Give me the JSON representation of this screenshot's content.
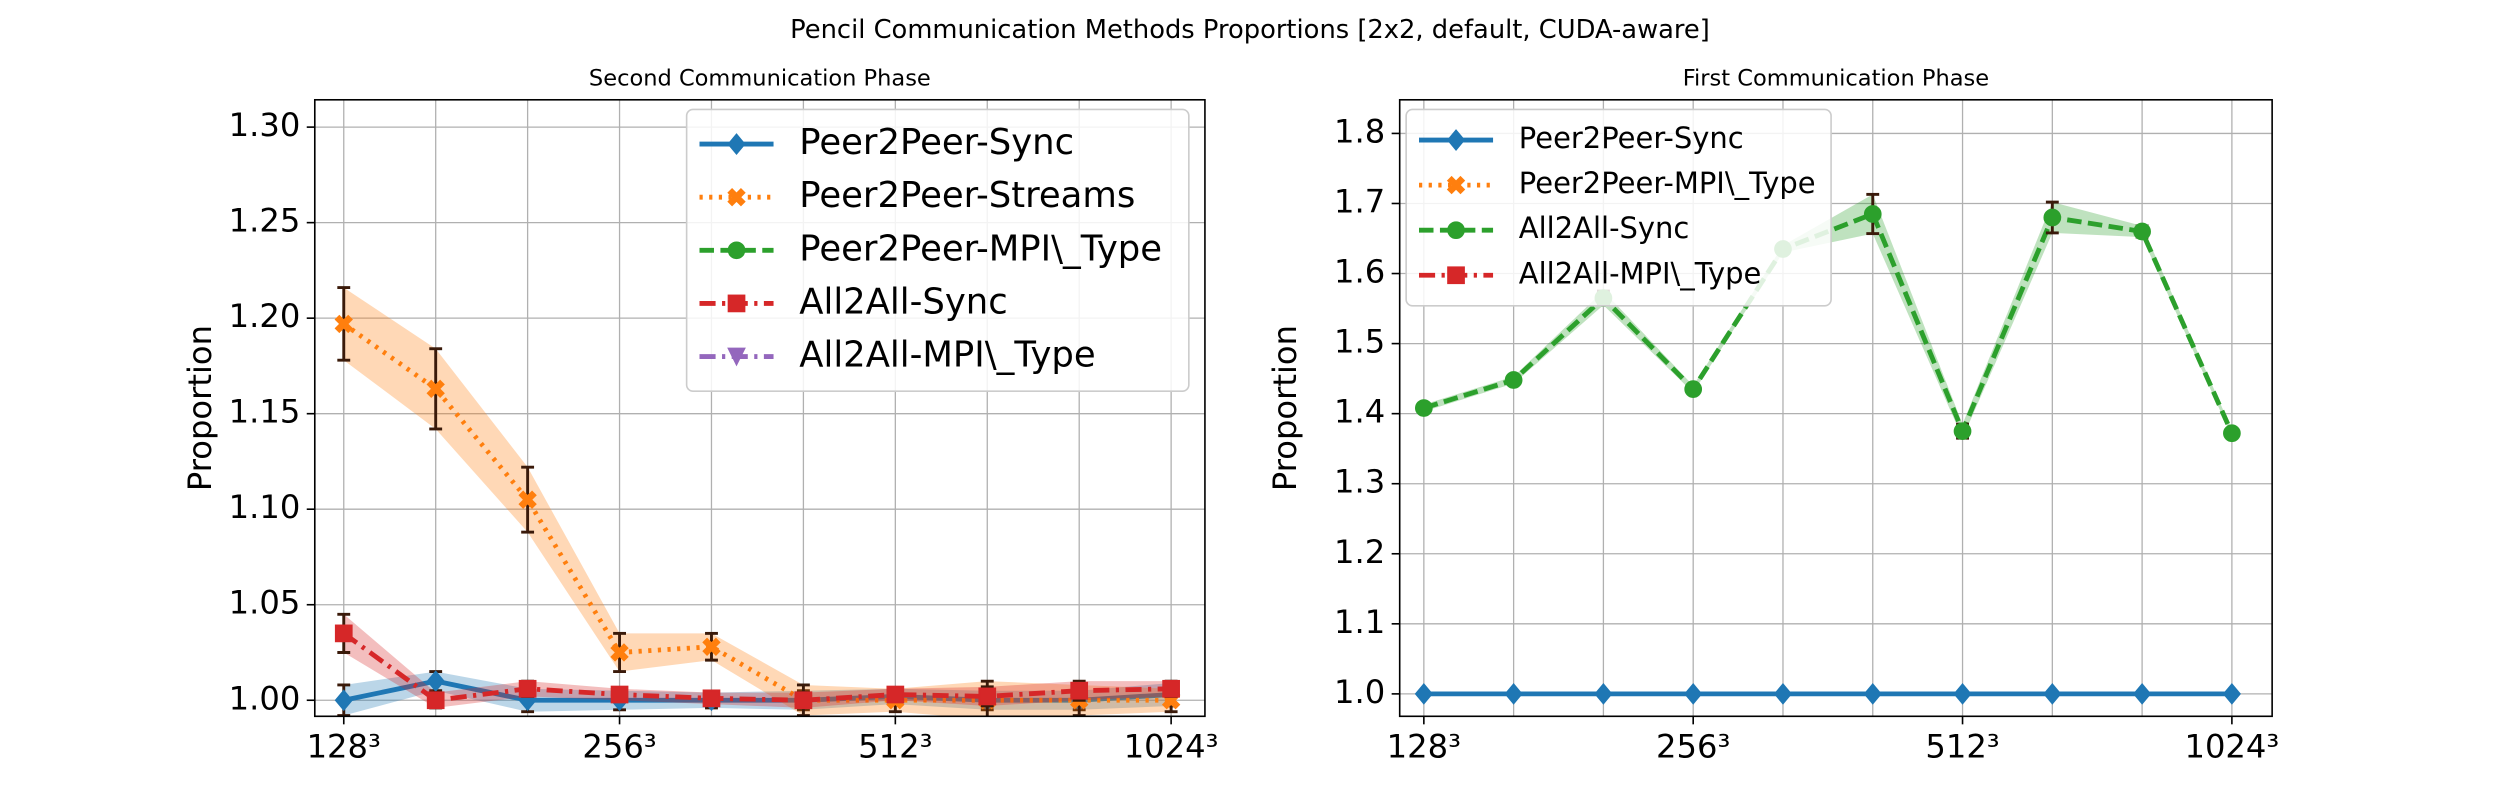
{
  "title": "Pencil Communication Methods Proportions [2x2, default, CUDA-aware]",
  "chart_data": [
    {
      "type": "line",
      "title": "Second Communication Phase",
      "y_label": "Proportion",
      "categories": [
        "128³",
        null,
        null,
        "256³",
        null,
        null,
        "512³",
        null,
        null,
        "1024³"
      ],
      "ylim": [
        0.9916,
        1.3143
      ],
      "yticks": [
        {
          "value": 1.0,
          "label": "1.00"
        },
        {
          "value": 1.05,
          "label": "1.05"
        },
        {
          "value": 1.1,
          "label": "1.10"
        },
        {
          "value": 1.15,
          "label": "1.15"
        },
        {
          "value": 1.2,
          "label": "1.20"
        },
        {
          "value": 1.25,
          "label": "1.25"
        },
        {
          "value": 1.3,
          "label": "1.30"
        }
      ],
      "grid": true,
      "legend": "upper right",
      "series": [
        {
          "name": "Peer2Peer-Sync",
          "color": "#1f77b4",
          "marker": "diamond",
          "linestyle": "solid",
          "values": [
            1.0,
            1.01,
            1.0,
            1.0,
            1.0,
            1.0,
            1.002,
            1.0,
            1.0,
            1.003
          ],
          "errors": [
            0.008,
            0.005,
            0.006,
            0.005,
            0.004,
            0.005,
            0.004,
            0.005,
            0.005,
            0.006
          ]
        },
        {
          "name": "Peer2Peer-Streams",
          "color": "#ff7f0e",
          "marker": "x",
          "linestyle": "dotted",
          "values": [
            1.197,
            1.163,
            1.105,
            1.025,
            1.028,
            1.0,
            1.0,
            1.0,
            1.0,
            1.0
          ],
          "errors": [
            0.019,
            0.021,
            0.017,
            0.01,
            0.007,
            0.008,
            0.006,
            0.01,
            0.008,
            0.006
          ]
        },
        {
          "name": "Peer2Peer-MPI\\_Type",
          "color": "#2ca02c",
          "marker": "circle",
          "linestyle": "dashed",
          "values": [
            null,
            null,
            null,
            null,
            null,
            null,
            null,
            null,
            null,
            null
          ]
        },
        {
          "name": "All2All-Sync",
          "color": "#d62728",
          "marker": "square",
          "linestyle": "dashdot",
          "values": [
            1.035,
            1.0,
            1.006,
            1.003,
            1.001,
            1.0,
            1.003,
            1.002,
            1.005,
            1.006
          ],
          "errors": [
            0.01,
            0.004,
            0.004,
            0.003,
            0.003,
            0.004,
            0.003,
            0.005,
            0.005,
            0.004
          ]
        },
        {
          "name": "All2All-MPI\\_Type",
          "color": "#9467bd",
          "marker": "triangle",
          "linestyle": "dashdot",
          "values": [
            null,
            null,
            null,
            null,
            null,
            null,
            null,
            null,
            null,
            null
          ]
        }
      ]
    },
    {
      "type": "line",
      "title": "First Communication Phase",
      "y_label": "Proportion",
      "categories": [
        "128³",
        null,
        null,
        "256³",
        null,
        null,
        "512³",
        null,
        null,
        "1024³"
      ],
      "ylim": [
        0.968,
        1.848
      ],
      "yticks": [
        {
          "value": 1.0,
          "label": "1.0"
        },
        1.1,
        1.2,
        1.3,
        1.4,
        1.5,
        1.6,
        1.7,
        1.8
      ],
      "grid": true,
      "legend": "upper left",
      "series": [
        {
          "name": "Peer2Peer-Sync",
          "color": "#1f77b4",
          "marker": "diamond",
          "linestyle": "solid",
          "values": [
            1.0,
            1.0,
            1.0,
            1.0,
            1.0,
            1.0,
            1.0,
            1.0,
            1.0,
            1.0
          ],
          "errors": [
            0.002,
            0.002,
            0.002,
            0.002,
            0.002,
            0.002,
            0.002,
            0.002,
            0.002,
            0.002
          ]
        },
        {
          "name": "Peer2Peer-MPI\\_Type",
          "color": "#ff7f0e",
          "marker": "x",
          "linestyle": "dotted",
          "values": [
            null,
            null,
            null,
            null,
            null,
            null,
            null,
            null,
            null,
            null
          ]
        },
        {
          "name": "All2All-Sync",
          "color": "#2ca02c",
          "marker": "circle",
          "linestyle": "dashed",
          "values": [
            1.408,
            1.448,
            1.565,
            1.435,
            1.635,
            1.685,
            1.375,
            1.68,
            1.66,
            1.372
          ],
          "errors": [
            0.005,
            0.005,
            0.01,
            0.005,
            0.005,
            0.028,
            0.01,
            0.022,
            0.008,
            0.005
          ]
        },
        {
          "name": "All2All-MPI\\_Type",
          "color": "#d62728",
          "marker": "square",
          "linestyle": "dashdot",
          "values": [
            null,
            null,
            null,
            null,
            null,
            null,
            null,
            null,
            null,
            null
          ]
        }
      ]
    }
  ]
}
